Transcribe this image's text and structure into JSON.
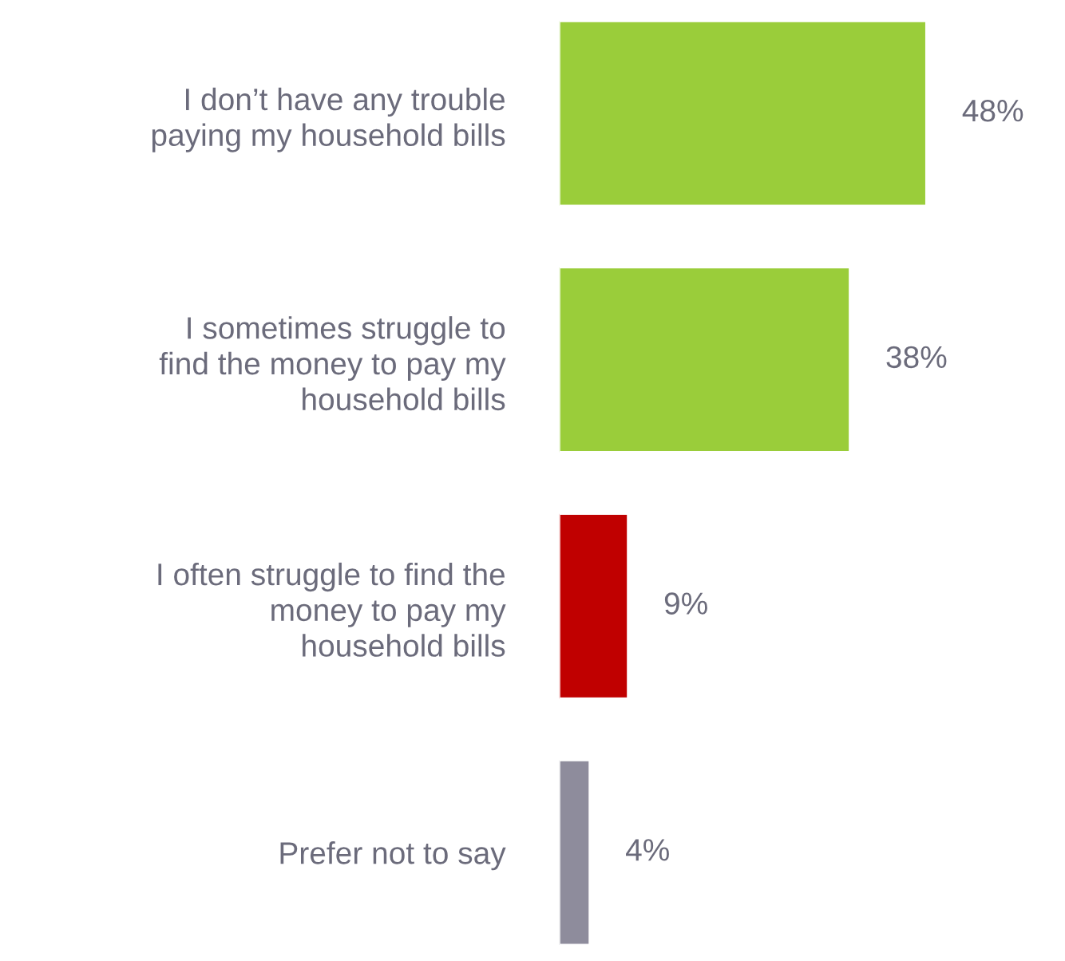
{
  "chart_data": {
    "type": "bar",
    "orientation": "horizontal",
    "categories": [
      "I don’t have any trouble\npaying my household bills",
      "I sometimes struggle to\nfind the money to pay my\nhousehold bills",
      "I often struggle to find the\nmoney to pay my\nhousehold bills",
      "Prefer not to say"
    ],
    "colors": [
      "#9acd3a",
      "#9acd3a",
      "#c00000",
      "#8e8c9c"
    ],
    "value_labels": [
      "48%",
      "38%",
      "9%",
      "4%"
    ],
    "values": [
      48,
      38,
      9,
      4
    ],
    "data_labels": false,
    "grid": false,
    "legend": false,
    "tick_labels": "y"
  }
}
